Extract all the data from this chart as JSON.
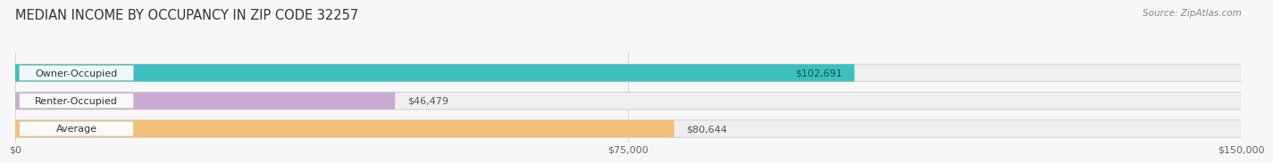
{
  "title": "MEDIAN INCOME BY OCCUPANCY IN ZIP CODE 32257",
  "source": "Source: ZipAtlas.com",
  "categories": [
    "Owner-Occupied",
    "Renter-Occupied",
    "Average"
  ],
  "values": [
    102691,
    46479,
    80644
  ],
  "labels": [
    "$102,691",
    "$46,479",
    "$80,644"
  ],
  "bar_colors": [
    "#3BBFBF",
    "#C9ACD4",
    "#F5C07A"
  ],
  "bar_bg_color": "#EBEBEB",
  "xlim": [
    0,
    150000
  ],
  "xtick_labels": [
    "$0",
    "$75,000",
    "$150,000"
  ],
  "xtick_values": [
    0,
    75000,
    150000
  ],
  "background_color": "#F7F7F7",
  "title_fontsize": 10.5,
  "source_fontsize": 7.5,
  "label_fontsize": 8,
  "category_fontsize": 8,
  "value_label_color_inside": "#1a6060",
  "value_label_color_outside": "#555555"
}
